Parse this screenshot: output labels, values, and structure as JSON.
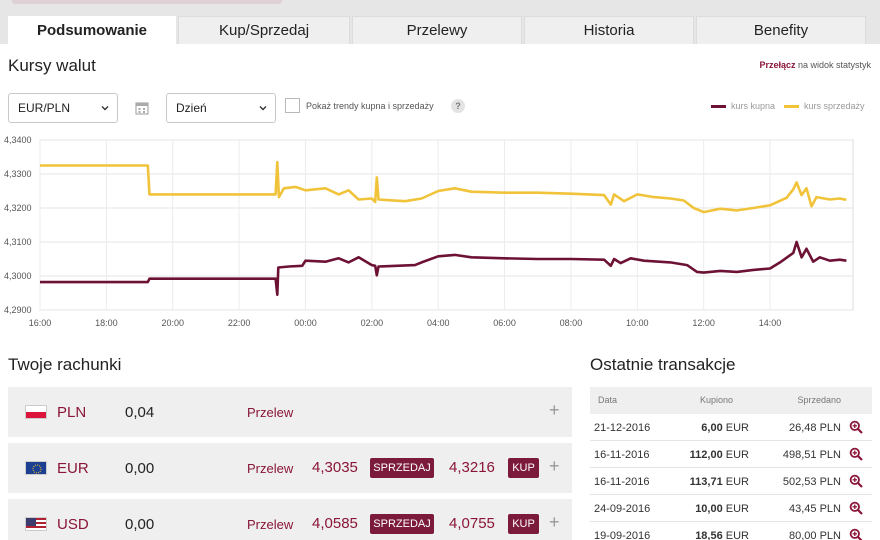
{
  "tabs": [
    {
      "label": "Podsumowanie",
      "active": true
    },
    {
      "label": "Kup/Sprzedaj",
      "active": false
    },
    {
      "label": "Przelewy",
      "active": false
    },
    {
      "label": "Historia",
      "active": false
    },
    {
      "label": "Benefity",
      "active": false
    }
  ],
  "rates_section": {
    "title": "Kursy walut",
    "switch_link": "Przełącz",
    "switch_text": " na widok statystyk",
    "pair_select": "EUR/PLN",
    "period_select": "Dzień",
    "trend_checkbox_label": "Pokaż trendy kupna i sprzedaży",
    "trend_checked": false,
    "help": "?"
  },
  "chart_data": {
    "type": "line",
    "x_ticks": [
      "16:00",
      "18:00",
      "20:00",
      "22:00",
      "00:00",
      "02:00",
      "04:00",
      "06:00",
      "08:00",
      "10:00",
      "12:00",
      "14:00"
    ],
    "y_ticks": [
      "4,3400",
      "4,3300",
      "4,3200",
      "4,3100",
      "4,3000",
      "4,2900"
    ],
    "ylim": [
      4.29,
      4.34
    ],
    "xlim_hours": [
      16,
      40.5
    ],
    "grid": true,
    "legend_position": "top-right",
    "series": [
      {
        "name": "kurs kupna",
        "color": "#6d1235",
        "points": [
          [
            16,
            4.2982
          ],
          [
            19.25,
            4.2982
          ],
          [
            19.3,
            4.2992
          ],
          [
            23.1,
            4.2992
          ],
          [
            23.15,
            4.2945
          ],
          [
            23.18,
            4.3025
          ],
          [
            23.5,
            4.3028
          ],
          [
            23.9,
            4.303
          ],
          [
            24.0,
            4.3045
          ],
          [
            24.6,
            4.3042
          ],
          [
            25.0,
            4.3052
          ],
          [
            25.3,
            4.304
          ],
          [
            25.6,
            4.3055
          ],
          [
            25.9,
            4.3038
          ],
          [
            26.0,
            4.3032
          ],
          [
            26.1,
            4.303
          ],
          [
            26.15,
            4.3002
          ],
          [
            26.2,
            4.3028
          ],
          [
            27.3,
            4.3032
          ],
          [
            27.5,
            4.304
          ],
          [
            28.0,
            4.3058
          ],
          [
            28.5,
            4.3062
          ],
          [
            29.0,
            4.3055
          ],
          [
            30.0,
            4.3052
          ],
          [
            31.0,
            4.305
          ],
          [
            32.0,
            4.305
          ],
          [
            33.0,
            4.3048
          ],
          [
            33.2,
            4.303
          ],
          [
            33.3,
            4.305
          ],
          [
            33.5,
            4.3038
          ],
          [
            33.8,
            4.3052
          ],
          [
            34.2,
            4.3045
          ],
          [
            35.0,
            4.304
          ],
          [
            35.5,
            4.3032
          ],
          [
            35.8,
            4.3012
          ],
          [
            36.0,
            4.301
          ],
          [
            36.5,
            4.3015
          ],
          [
            37.0,
            4.3012
          ],
          [
            37.5,
            4.3018
          ],
          [
            38.0,
            4.3022
          ],
          [
            38.3,
            4.304
          ],
          [
            38.7,
            4.3068
          ],
          [
            38.8,
            4.31
          ],
          [
            38.95,
            4.3055
          ],
          [
            39.1,
            4.308
          ],
          [
            39.3,
            4.3042
          ],
          [
            39.5,
            4.3055
          ],
          [
            39.8,
            4.3045
          ],
          [
            40.1,
            4.3048
          ],
          [
            40.3,
            4.3045
          ]
        ]
      },
      {
        "name": "kurs sprzedaży",
        "color": "#f0c33a",
        "points": [
          [
            16,
            4.3325
          ],
          [
            19.25,
            4.3325
          ],
          [
            19.3,
            4.324
          ],
          [
            23.1,
            4.324
          ],
          [
            23.15,
            4.3335
          ],
          [
            23.2,
            4.3232
          ],
          [
            23.35,
            4.3258
          ],
          [
            23.7,
            4.3262
          ],
          [
            24.0,
            4.3252
          ],
          [
            24.6,
            4.3258
          ],
          [
            25.0,
            4.324
          ],
          [
            25.3,
            4.3252
          ],
          [
            25.6,
            4.3225
          ],
          [
            26.0,
            4.3228
          ],
          [
            26.1,
            4.3218
          ],
          [
            26.15,
            4.329
          ],
          [
            26.2,
            4.3225
          ],
          [
            27.0,
            4.322
          ],
          [
            27.5,
            4.3228
          ],
          [
            28.0,
            4.325
          ],
          [
            28.5,
            4.3258
          ],
          [
            29.0,
            4.3248
          ],
          [
            30.0,
            4.3245
          ],
          [
            31.0,
            4.3245
          ],
          [
            32.0,
            4.3242
          ],
          [
            33.0,
            4.3238
          ],
          [
            33.2,
            4.321
          ],
          [
            33.3,
            4.324
          ],
          [
            33.6,
            4.322
          ],
          [
            34.0,
            4.324
          ],
          [
            34.5,
            4.3232
          ],
          [
            35.0,
            4.3228
          ],
          [
            35.4,
            4.3222
          ],
          [
            35.7,
            4.32
          ],
          [
            36.0,
            4.3188
          ],
          [
            36.5,
            4.3198
          ],
          [
            37.0,
            4.3193
          ],
          [
            37.5,
            4.32
          ],
          [
            38.0,
            4.3208
          ],
          [
            38.5,
            4.323
          ],
          [
            38.7,
            4.3255
          ],
          [
            38.8,
            4.3275
          ],
          [
            38.95,
            4.3238
          ],
          [
            39.1,
            4.3258
          ],
          [
            39.25,
            4.3205
          ],
          [
            39.4,
            4.3232
          ],
          [
            39.8,
            4.3225
          ],
          [
            40.1,
            4.3228
          ],
          [
            40.3,
            4.3224
          ]
        ]
      }
    ]
  },
  "accounts": {
    "title": "Twoje rachunki",
    "transfer_label": "Przelew",
    "sell_label": "SPRZEDAJ",
    "buy_label": "KUP",
    "plus": "+",
    "items": [
      {
        "currency": "PLN",
        "balance": "0,04",
        "flag": "pl"
      },
      {
        "currency": "EUR",
        "balance": "0,00",
        "flag": "eu",
        "sell_rate": "4,3035",
        "buy_rate": "4,3216"
      },
      {
        "currency": "USD",
        "balance": "0,00",
        "flag": "us",
        "sell_rate": "4,0585",
        "buy_rate": "4,0755"
      }
    ]
  },
  "transactions": {
    "title": "Ostatnie transakcje",
    "headers": [
      "Data",
      "Kupiono",
      "Sprzedano"
    ],
    "rows": [
      {
        "date": "21-12-2016",
        "bought_amt": "6,00",
        "bought_cur": " EUR",
        "sold": "26,48 PLN"
      },
      {
        "date": "16-11-2016",
        "bought_amt": "112,00",
        "bought_cur": " EUR",
        "sold": "498,51 PLN"
      },
      {
        "date": "16-11-2016",
        "bought_amt": "113,71",
        "bought_cur": " EUR",
        "sold": "502,53 PLN"
      },
      {
        "date": "24-09-2016",
        "bought_amt": "10,00",
        "bought_cur": " EUR",
        "sold": "43,45 PLN"
      },
      {
        "date": "19-09-2016",
        "bought_amt": "18,56",
        "bought_cur": " EUR",
        "sold": "80,00 PLN"
      }
    ]
  },
  "colors": {
    "brand": "#8a1538",
    "button": "#7b1a3a",
    "buy_line": "#6d1235",
    "sell_line": "#f0c33a"
  },
  "icons": [
    "calendar-icon",
    "chevron-down-icon",
    "help-icon",
    "magnifier-plus-icon",
    "flag-icon",
    "plus-icon"
  ]
}
